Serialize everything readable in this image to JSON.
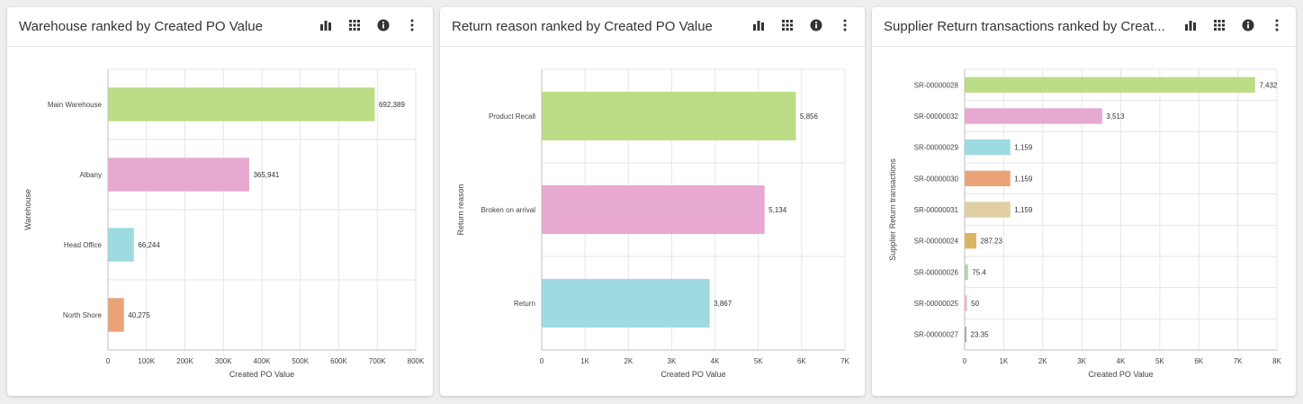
{
  "panels": [
    {
      "title": "Warehouse ranked by Created PO Value",
      "icons": [
        "bar-chart-icon",
        "grid-icon",
        "info-icon",
        "more-vertical-icon"
      ],
      "chart_data": {
        "type": "bar",
        "orientation": "horizontal",
        "categories": [
          "Main Warehouse",
          "Albany",
          "Head Office",
          "North Shore"
        ],
        "values": [
          692389,
          365941,
          66244,
          40275
        ],
        "value_labels": [
          "692,389",
          "365,941",
          "66,244",
          "40,275"
        ],
        "colors": [
          "#bddc86",
          "#e8a9d0",
          "#9edbe1",
          "#e9a376"
        ],
        "xlabel": "Created PO Value",
        "ylabel": "Warehouse",
        "xlim": [
          0,
          800000
        ],
        "xticks": [
          0,
          100000,
          200000,
          300000,
          400000,
          500000,
          600000,
          700000,
          800000
        ],
        "xtick_labels": [
          "0",
          "100K",
          "200K",
          "300K",
          "400K",
          "500K",
          "600K",
          "700K",
          "800K"
        ],
        "grid": true
      }
    },
    {
      "title": "Return reason ranked by Created PO Value",
      "icons": [
        "bar-chart-icon",
        "grid-icon",
        "info-icon",
        "more-vertical-icon"
      ],
      "chart_data": {
        "type": "bar",
        "orientation": "horizontal",
        "categories": [
          "Product Recall",
          "Broken on arrival",
          "Return"
        ],
        "values": [
          5856,
          5134,
          3867
        ],
        "value_labels": [
          "5,856",
          "5,134",
          "3,867"
        ],
        "colors": [
          "#bddc86",
          "#e8a9d0",
          "#9edbe1"
        ],
        "xlabel": "Created PO Value",
        "ylabel": "Return reason",
        "xlim": [
          0,
          7000
        ],
        "xticks": [
          0,
          1000,
          2000,
          3000,
          4000,
          5000,
          6000,
          7000
        ],
        "xtick_labels": [
          "0",
          "1K",
          "2K",
          "3K",
          "4K",
          "5K",
          "6K",
          "7K"
        ],
        "grid": true
      }
    },
    {
      "title": "Supplier Return transactions ranked by Creat...",
      "icons": [
        "bar-chart-icon",
        "grid-icon",
        "info-icon",
        "more-vertical-icon"
      ],
      "chart_data": {
        "type": "bar",
        "orientation": "horizontal",
        "categories": [
          "SR-00000028",
          "SR-00000032",
          "SR-00000029",
          "SR-00000030",
          "SR-00000031",
          "SR-00000024",
          "SR-00000026",
          "SR-00000025",
          "SR-00000027"
        ],
        "values": [
          7432,
          3513,
          1159,
          1159,
          1159,
          287.23,
          75.4,
          50,
          23.35
        ],
        "value_labels": [
          "7,432",
          "3,513",
          "1,159",
          "1,159",
          "1,159",
          "287.23",
          "75.4",
          "50",
          "23.35"
        ],
        "colors": [
          "#bddc86",
          "#e8a9d0",
          "#9edbe1",
          "#e9a376",
          "#e0cfa5",
          "#dcb35e",
          "#a9dca8",
          "#f2b7c5",
          "#a7a7a7"
        ],
        "xlabel": "Created PO Value",
        "ylabel": "Supplier Return transactions",
        "xlim": [
          0,
          8000
        ],
        "xticks": [
          0,
          1000,
          2000,
          3000,
          4000,
          5000,
          6000,
          7000,
          8000
        ],
        "xtick_labels": [
          "0",
          "1K",
          "2K",
          "3K",
          "4K",
          "5K",
          "6K",
          "7K",
          "8K"
        ],
        "grid": true
      }
    }
  ]
}
